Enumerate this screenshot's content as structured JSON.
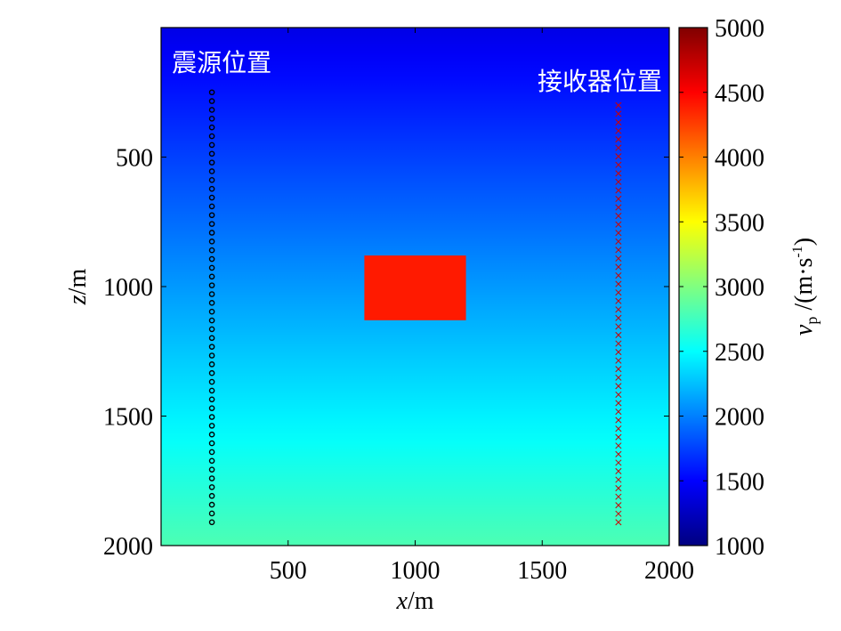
{
  "chart_data": {
    "type": "heatmap",
    "xlabel": "x/m",
    "ylabel": "z/m",
    "xlim": [
      0,
      2000
    ],
    "ylim": [
      2000,
      0
    ],
    "x_ticks": [
      500,
      1000,
      1500,
      2000
    ],
    "y_ticks": [
      500,
      1000,
      1500,
      2000
    ],
    "background_gradient": {
      "z_top": 0,
      "v_top": 1400,
      "z_bottom": 2000,
      "v_bottom": 2800
    },
    "anomaly": {
      "x": [
        800,
        1200
      ],
      "z": [
        880,
        1130
      ],
      "vp": 4400
    },
    "sources": {
      "label": "震源位置",
      "x": 200,
      "z_start": 250,
      "z_end": 1910,
      "count": 50,
      "marker": "circle",
      "color": "#000000"
    },
    "receivers": {
      "label": "接收器位置",
      "x": 1800,
      "z_start": 300,
      "z_end": 1910,
      "count": 50,
      "marker": "x",
      "color": "#cc0000"
    },
    "colorbar": {
      "label": "v_p /(m·s^-1)",
      "label_parts": {
        "v": "v",
        "sub": "p",
        "pre": "/(m·s",
        "sup": "-1",
        "post": ")"
      },
      "range": [
        1000,
        5000
      ],
      "ticks": [
        1000,
        1500,
        2000,
        2500,
        3000,
        3500,
        4000,
        4500,
        5000
      ],
      "colormap": "jet"
    }
  }
}
